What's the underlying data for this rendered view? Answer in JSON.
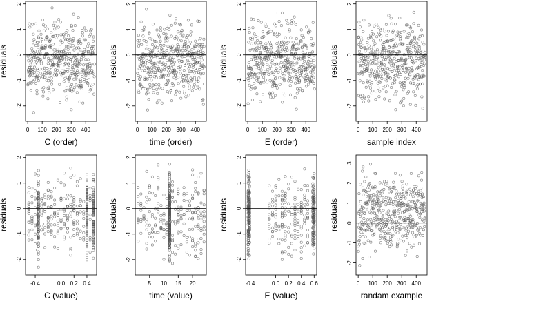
{
  "chart_data": [
    {
      "type": "scatter",
      "xlabel": "C (order)",
      "ylabel": "residuals",
      "xlim": [
        -15,
        475
      ],
      "ylim": [
        -2.6,
        2.1
      ],
      "xticks": [
        0,
        100,
        200,
        300,
        400
      ],
      "yticks": [
        -2,
        -1,
        0,
        1,
        2
      ],
      "hline": 0,
      "points": {
        "n": 460,
        "x_mode": "index",
        "x_range": [
          1,
          460
        ],
        "y_range": [
          -2.45,
          1.95
        ],
        "seed": 11
      }
    },
    {
      "type": "scatter",
      "xlabel": "time (order)",
      "ylabel": "residuals",
      "xlim": [
        -15,
        475
      ],
      "ylim": [
        -2.6,
        2.1
      ],
      "xticks": [
        0,
        100,
        200,
        300,
        400
      ],
      "yticks": [
        -2,
        -1,
        0,
        1,
        2
      ],
      "hline": 0,
      "points": {
        "n": 460,
        "x_mode": "index",
        "x_range": [
          1,
          460
        ],
        "y_range": [
          -2.45,
          1.95
        ],
        "seed": 23
      }
    },
    {
      "type": "scatter",
      "xlabel": "E (order)",
      "ylabel": "residuals",
      "xlim": [
        -15,
        475
      ],
      "ylim": [
        -2.6,
        2.1
      ],
      "xticks": [
        0,
        100,
        200,
        300,
        400
      ],
      "yticks": [
        -2,
        -1,
        0,
        1,
        2
      ],
      "hline": 0,
      "points": {
        "n": 460,
        "x_mode": "index",
        "x_range": [
          1,
          460
        ],
        "y_range": [
          -2.45,
          1.95
        ],
        "seed": 37
      }
    },
    {
      "type": "scatter",
      "xlabel": "sample index",
      "ylabel": "residuals",
      "xlim": [
        -15,
        475
      ],
      "ylim": [
        -2.6,
        2.1
      ],
      "xticks": [
        0,
        100,
        200,
        300,
        400
      ],
      "yticks": [
        -2,
        -1,
        0,
        1,
        2
      ],
      "hline": 0,
      "points": {
        "n": 460,
        "x_mode": "index",
        "x_range": [
          1,
          460
        ],
        "y_range": [
          -2.45,
          1.95
        ],
        "seed": 41
      }
    },
    {
      "type": "scatter",
      "xlabel": "C (value)",
      "ylabel": "residuals",
      "xlim": [
        -0.55,
        0.55
      ],
      "ylim": [
        -2.6,
        2.1
      ],
      "xticks": [
        -0.4,
        0.0,
        0.2,
        0.4
      ],
      "xtick_labels": [
        "-0.4",
        "0.0",
        "0.2",
        "0.4"
      ],
      "yticks": [
        -2,
        -1,
        0,
        1,
        2
      ],
      "hline": 0,
      "points": {
        "n": 460,
        "x_mode": "levels",
        "x_levels": [
          -0.5,
          -0.45,
          -0.4,
          -0.35,
          -0.3,
          -0.25,
          -0.2,
          -0.15,
          -0.1,
          -0.05,
          0.0,
          0.05,
          0.1,
          0.15,
          0.2,
          0.25,
          0.3,
          0.35,
          0.4,
          0.45,
          0.5
        ],
        "dense_levels": [
          -0.35,
          0.4,
          0.5
        ],
        "y_range": [
          -2.45,
          1.95
        ],
        "seed": 53
      }
    },
    {
      "type": "scatter",
      "xlabel": "time (value)",
      "ylabel": "residuals",
      "xlim": [
        0,
        24.8
      ],
      "ylim": [
        -2.6,
        2.1
      ],
      "xticks": [
        5,
        10,
        15,
        20
      ],
      "xtick_labels": [
        "5",
        "10",
        "15",
        "20"
      ],
      "yticks": [
        -2,
        -1,
        0,
        1,
        2
      ],
      "hline": 0,
      "points": {
        "n": 460,
        "x_mode": "levels",
        "x_levels": [
          1,
          2,
          3,
          4,
          5,
          6,
          7,
          8,
          9,
          10,
          11,
          12,
          13,
          14,
          15,
          16,
          17,
          18,
          19,
          20,
          21,
          22,
          23,
          24
        ],
        "dense_levels": [
          12
        ],
        "y_range": [
          -2.45,
          1.95
        ],
        "seed": 67
      }
    },
    {
      "type": "scatter",
      "xlabel": "E (value)",
      "ylabel": "residuals",
      "xlim": [
        -0.47,
        0.64
      ],
      "ylim": [
        -2.6,
        2.1
      ],
      "xticks": [
        -0.4,
        0.0,
        0.2,
        0.4,
        0.6
      ],
      "xtick_labels": [
        "-0.4",
        "0.0",
        "0.2",
        "0.4",
        "0.6"
      ],
      "yticks": [
        -2,
        -1,
        0,
        1,
        2
      ],
      "hline": 0,
      "points": {
        "n": 460,
        "x_mode": "levels",
        "x_levels": [
          -0.43,
          -0.42,
          -0.41,
          -0.1,
          -0.05,
          0.0,
          0.05,
          0.1,
          0.15,
          0.2,
          0.25,
          0.3,
          0.35,
          0.4,
          0.45,
          0.5,
          0.58,
          0.59,
          0.6
        ],
        "dense_levels": [
          -0.43,
          -0.42,
          -0.41,
          0.58,
          0.59,
          0.6
        ],
        "y_range": [
          -2.45,
          1.95
        ],
        "seed": 79
      }
    },
    {
      "type": "scatter",
      "xlabel": "randam example",
      "ylabel": "residuals",
      "xlim": [
        -15,
        475
      ],
      "ylim": [
        -2.6,
        3.4
      ],
      "xticks": [
        0,
        100,
        200,
        300,
        400
      ],
      "yticks": [
        -2,
        -1,
        0,
        1,
        2,
        3
      ],
      "hline": 0,
      "points": {
        "n": 460,
        "x_mode": "index",
        "x_range": [
          1,
          460
        ],
        "y_range": [
          -2.2,
          3.1
        ],
        "seed": 97
      }
    }
  ]
}
